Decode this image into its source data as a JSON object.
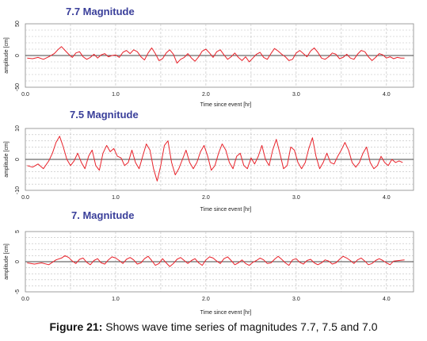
{
  "caption": {
    "label": "Figure 21:",
    "text": " Shows wave time series of magnitudes 7.7, 7.5 and 7.0"
  },
  "colors": {
    "wave": "#e8222a",
    "title": "#3a3f9a"
  },
  "chart_data": [
    {
      "type": "line",
      "title": "7.7 Magnitude",
      "xlabel": "Time since event [hr]",
      "ylabel": "amplitude [cm]",
      "xlim": [
        0,
        4.3
      ],
      "ylim": [
        -50,
        50
      ],
      "xticks": [
        "0.0",
        "1.0",
        "2.0",
        "3.0",
        "4.0"
      ],
      "yticks": [
        "-50",
        "0",
        "50"
      ],
      "grid": true,
      "series": [
        {
          "x": [
            0.02,
            0.08,
            0.14,
            0.2,
            0.26,
            0.32,
            0.36,
            0.4,
            0.44,
            0.48,
            0.52,
            0.56,
            0.6,
            0.64,
            0.68,
            0.72,
            0.76,
            0.8,
            0.84,
            0.88,
            0.92,
            0.96,
            1.0,
            1.04,
            1.08,
            1.12,
            1.16,
            1.2,
            1.24,
            1.28,
            1.32,
            1.36,
            1.4,
            1.44,
            1.48,
            1.52,
            1.56,
            1.6,
            1.64,
            1.68,
            1.72,
            1.76,
            1.8,
            1.84,
            1.88,
            1.92,
            1.96,
            2.0,
            2.04,
            2.08,
            2.12,
            2.16,
            2.2,
            2.24,
            2.28,
            2.32,
            2.36,
            2.4,
            2.44,
            2.48,
            2.52,
            2.56,
            2.6,
            2.64,
            2.68,
            2.72,
            2.76,
            2.8,
            2.84,
            2.88,
            2.92,
            2.96,
            3.0,
            3.04,
            3.08,
            3.12,
            3.16,
            3.2,
            3.24,
            3.28,
            3.32,
            3.36,
            3.4,
            3.44,
            3.48,
            3.52,
            3.56,
            3.6,
            3.64,
            3.68,
            3.72,
            3.76,
            3.8,
            3.84,
            3.88,
            3.92,
            3.96,
            4.0,
            4.04,
            4.08,
            4.12,
            4.16,
            4.2
          ],
          "y": [
            -4,
            -5,
            -3,
            -6,
            -2,
            3,
            9,
            14,
            8,
            2,
            -3,
            4,
            6,
            -2,
            -6,
            -3,
            2,
            -4,
            1,
            3,
            -2,
            0,
            1,
            -3,
            5,
            8,
            3,
            9,
            6,
            -2,
            -7,
            4,
            12,
            3,
            -8,
            -5,
            4,
            9,
            2,
            -12,
            -6,
            -3,
            3,
            -4,
            -9,
            -2,
            7,
            10,
            4,
            -3,
            6,
            9,
            1,
            -6,
            -2,
            4,
            -3,
            -8,
            -2,
            -10,
            -4,
            2,
            5,
            -3,
            -6,
            3,
            11,
            7,
            2,
            -2,
            -8,
            -6,
            4,
            8,
            3,
            -2,
            7,
            12,
            5,
            -4,
            -6,
            -2,
            4,
            2,
            -5,
            -3,
            2,
            -4,
            -6,
            2,
            8,
            6,
            -2,
            -8,
            -3,
            3,
            1,
            -4,
            -2,
            -5,
            -3,
            -4,
            -4
          ]
        }
      ]
    },
    {
      "type": "line",
      "title": "7.5 Magnitude",
      "xlabel": "Time since event [hr]",
      "ylabel": "amplitude [cm]",
      "xlim": [
        0,
        4.3
      ],
      "ylim": [
        -10,
        10
      ],
      "xticks": [
        "0.0",
        "1.0",
        "2.0",
        "3.0",
        "4.0"
      ],
      "yticks": [
        "-10",
        "0",
        "10"
      ],
      "grid": true,
      "series": [
        {
          "x": [
            0.02,
            0.08,
            0.14,
            0.2,
            0.26,
            0.3,
            0.34,
            0.38,
            0.42,
            0.46,
            0.5,
            0.54,
            0.58,
            0.62,
            0.66,
            0.7,
            0.74,
            0.78,
            0.82,
            0.86,
            0.9,
            0.94,
            0.98,
            1.02,
            1.06,
            1.1,
            1.14,
            1.18,
            1.22,
            1.26,
            1.3,
            1.34,
            1.38,
            1.42,
            1.46,
            1.5,
            1.54,
            1.58,
            1.62,
            1.66,
            1.7,
            1.74,
            1.78,
            1.82,
            1.86,
            1.9,
            1.94,
            1.98,
            2.02,
            2.06,
            2.1,
            2.14,
            2.18,
            2.22,
            2.26,
            2.3,
            2.34,
            2.38,
            2.42,
            2.46,
            2.5,
            2.54,
            2.58,
            2.62,
            2.66,
            2.7,
            2.74,
            2.78,
            2.82,
            2.86,
            2.9,
            2.94,
            2.98,
            3.02,
            3.06,
            3.1,
            3.14,
            3.18,
            3.22,
            3.26,
            3.3,
            3.34,
            3.38,
            3.42,
            3.46,
            3.5,
            3.54,
            3.58,
            3.62,
            3.66,
            3.7,
            3.74,
            3.78,
            3.82,
            3.86,
            3.9,
            3.94,
            3.98,
            4.02,
            4.06,
            4.1,
            4.14,
            4.18
          ],
          "y": [
            -2,
            -2.5,
            -1.5,
            -3,
            -0.5,
            2,
            5.5,
            7.5,
            4,
            0,
            -2,
            -0.5,
            2,
            -1,
            -3,
            1,
            3,
            -2,
            -3.5,
            2,
            4.5,
            2.5,
            3.5,
            1,
            0.5,
            -2,
            -1,
            3,
            -1,
            -3,
            1,
            5,
            3,
            -3,
            -7,
            -2,
            4.5,
            6,
            -1,
            -5,
            -3,
            0,
            3,
            -1,
            -3,
            -1,
            2.5,
            4.5,
            1,
            -3.5,
            -2,
            2,
            5,
            3,
            -1,
            -3,
            1,
            2,
            -2,
            -3,
            0.5,
            -1.5,
            1,
            4.5,
            0,
            -2,
            3,
            6.5,
            2,
            -3,
            -2,
            4,
            3,
            -1,
            -3,
            -1,
            3.5,
            7,
            1,
            -3,
            -1,
            2,
            -1,
            -1.5,
            1,
            3,
            5.5,
            3,
            -1,
            -2.5,
            -1,
            2,
            4,
            -1,
            -3,
            -2,
            1,
            -1,
            -2,
            0,
            -1,
            -0.5,
            -1
          ]
        }
      ]
    },
    {
      "type": "line",
      "title": "7. Magnitude",
      "xlabel": "Time since event [hr]",
      "ylabel": "amplitude [cm]",
      "xlim": [
        0,
        4.3
      ],
      "ylim": [
        -5,
        5
      ],
      "xticks": [
        "0.0",
        "1.0",
        "2.0",
        "3.0",
        "4.0"
      ],
      "yticks": [
        "-5",
        "0",
        "5"
      ],
      "grid": true,
      "series": [
        {
          "x": [
            0.02,
            0.1,
            0.18,
            0.26,
            0.34,
            0.4,
            0.44,
            0.48,
            0.52,
            0.56,
            0.6,
            0.64,
            0.68,
            0.72,
            0.76,
            0.8,
            0.84,
            0.88,
            0.92,
            0.96,
            1.0,
            1.04,
            1.08,
            1.12,
            1.16,
            1.2,
            1.24,
            1.28,
            1.32,
            1.36,
            1.4,
            1.44,
            1.48,
            1.52,
            1.56,
            1.6,
            1.64,
            1.68,
            1.72,
            1.76,
            1.8,
            1.84,
            1.88,
            1.92,
            1.96,
            2.0,
            2.04,
            2.08,
            2.12,
            2.16,
            2.2,
            2.24,
            2.28,
            2.32,
            2.36,
            2.4,
            2.44,
            2.48,
            2.52,
            2.56,
            2.6,
            2.64,
            2.68,
            2.72,
            2.76,
            2.8,
            2.84,
            2.88,
            2.92,
            2.96,
            3.0,
            3.04,
            3.08,
            3.12,
            3.16,
            3.2,
            3.24,
            3.28,
            3.32,
            3.36,
            3.4,
            3.44,
            3.48,
            3.52,
            3.56,
            3.6,
            3.64,
            3.68,
            3.72,
            3.76,
            3.8,
            3.84,
            3.88,
            3.92,
            3.96,
            4.0,
            4.04,
            4.08,
            4.14,
            4.2
          ],
          "y": [
            -0.2,
            -0.4,
            -0.2,
            -0.5,
            0.3,
            0.6,
            1.0,
            0.7,
            0.1,
            -0.3,
            0.4,
            0.6,
            -0.1,
            -0.5,
            0.2,
            0.5,
            -0.2,
            -0.4,
            0.3,
            0.8,
            0.6,
            0.2,
            -0.3,
            0.4,
            0.7,
            0.3,
            -0.4,
            -0.2,
            0.5,
            0.9,
            0.2,
            -0.6,
            -0.3,
            0.5,
            -0.2,
            -0.8,
            -0.3,
            0.4,
            0.7,
            0.2,
            -0.3,
            0.2,
            0.5,
            -0.2,
            -0.6,
            0.3,
            0.8,
            0.6,
            0.1,
            -0.3,
            0.5,
            0.8,
            0.2,
            -0.5,
            -0.2,
            0.3,
            -0.3,
            -0.6,
            -0.1,
            0.2,
            0.6,
            0.3,
            -0.3,
            -0.2,
            0.4,
            0.9,
            0.4,
            -0.2,
            -0.6,
            0.3,
            0.5,
            -0.1,
            -0.4,
            0.2,
            0.4,
            -0.2,
            -0.5,
            -0.2,
            0.3,
            0.1,
            -0.4,
            -0.2,
            0.4,
            0.9,
            0.6,
            0.2,
            -0.3,
            0.3,
            0.6,
            0.1,
            -0.5,
            -0.3,
            0.2,
            0.5,
            0.2,
            -0.2,
            -0.5,
            0.1,
            0.2,
            0.3
          ]
        }
      ]
    }
  ]
}
